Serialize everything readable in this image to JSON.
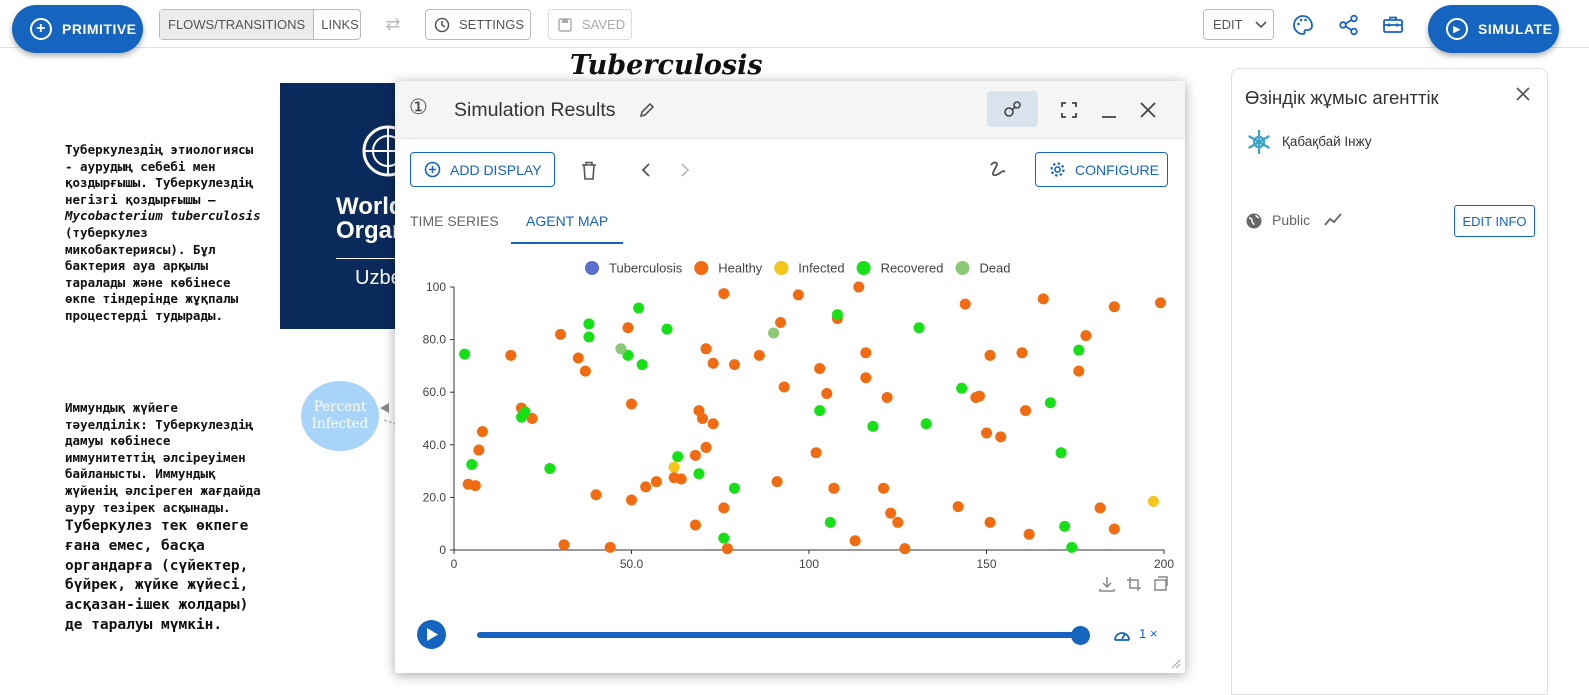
{
  "toolbar": {
    "primitive_label": "PRIMITIVE",
    "flows_label": "FLOWS/TRANSITIONS",
    "links_label": "LINKS",
    "settings_label": "SETTINGS",
    "saved_label": "SAVED",
    "edit_label": "EDIT",
    "simulate_label": "SIMULATE"
  },
  "canvas": {
    "title": "Tuberculosis",
    "who_line1": "World",
    "who_line2": "Organ",
    "who_line3": "Uzbe",
    "percent_node": "Percent\nInfected",
    "text_block1_parts": {
      "p1": "Туберкулездің этиологиясы - аурудың себебі мен қоздырғышы. Туберкулездің негізгі қоздырғышы — ",
      "p2": "Mycobacterium tuberculosis",
      "p3": " (туберкулез микобактериясы). Бұл бактерия ауа арқылы таралады және көбінесе өкпе тіндерінде жұқпалы процестерді тудырады."
    },
    "text_block2": "Иммундық жүйеге тәуелділік: Туберкулездің дамуы көбінесе иммунитеттің әлсіреуімен байланысты. Иммундық жүйенің әлсіреген жағдайда ауру тезірек асқынады.",
    "text_block3": "Туберкулез тек өкпеге ғана емес, басқа органдарға (сүйектер, бүйрек, жүйке жүйесі, асқазан-ішек жолдары) де таралуы мүмкін."
  },
  "results": {
    "index_symbol": "①",
    "title": "Simulation Results",
    "add_display": "ADD DISPLAY",
    "configure": "CONFIGURE",
    "tabs": [
      "TIME SERIES",
      "AGENT MAP"
    ],
    "active_tab": "AGENT MAP",
    "speed": "1 ×",
    "progress": 1.0
  },
  "panel": {
    "title": "Өзіндік жұмыс агенттік",
    "author": "Қабақбай Інжу",
    "visibility": "Public",
    "edit_info": "EDIT INFO"
  },
  "colors": {
    "accent": "#1565c0",
    "Tuberculosis": "#5b6fcf",
    "Healthy": "#f26b11",
    "Infected": "#f5c518",
    "Recovered": "#16e016",
    "Dead": "#8bc975"
  },
  "icons": [
    "plus-circle-icon",
    "swap-arrows-icon",
    "clock-icon",
    "save-icon",
    "chevron-down-icon",
    "palette-icon",
    "share-icon",
    "toolbox-icon",
    "play-circle-icon",
    "pencil-icon",
    "network-icon",
    "fullscreen-icon",
    "minimize-icon",
    "close-icon",
    "trash-icon",
    "chevron-left-icon",
    "chevron-right-icon",
    "scribble-icon",
    "gear-icon",
    "download-icon",
    "crop-icon",
    "play-icon",
    "speedometer-icon",
    "globe-icon",
    "trend-icon",
    "snowflake-avatar-icon"
  ],
  "chart_data": {
    "type": "scatter",
    "xlim": [
      0,
      200
    ],
    "ylim": [
      0,
      100
    ],
    "xticks": [
      "0",
      "50.0",
      "100",
      "150",
      "200"
    ],
    "yticks": [
      "0",
      "20.0",
      "40.0",
      "60.0",
      "80.0",
      "100"
    ],
    "legend_position": "top",
    "series": [
      {
        "name": "Tuberculosis",
        "points": []
      },
      {
        "name": "Healthy",
        "points": [
          [
            4,
            25
          ],
          [
            6,
            24.5
          ],
          [
            7,
            38
          ],
          [
            8,
            45
          ],
          [
            16,
            74
          ],
          [
            19,
            54
          ],
          [
            22,
            50
          ],
          [
            30,
            82
          ],
          [
            31,
            2
          ],
          [
            35,
            73
          ],
          [
            37,
            68
          ],
          [
            40,
            21
          ],
          [
            44,
            1
          ],
          [
            49,
            84.5
          ],
          [
            50,
            55.5
          ],
          [
            50,
            19
          ],
          [
            54,
            24
          ],
          [
            57,
            26
          ],
          [
            62,
            27.5
          ],
          [
            64,
            27
          ],
          [
            68,
            9.5
          ],
          [
            68,
            36
          ],
          [
            69,
            53
          ],
          [
            70,
            50
          ],
          [
            71,
            39
          ],
          [
            71,
            76.5
          ],
          [
            73,
            48
          ],
          [
            73,
            71
          ],
          [
            76,
            16
          ],
          [
            76,
            97.5
          ],
          [
            77,
            0.5
          ],
          [
            79,
            70.5
          ],
          [
            86,
            74
          ],
          [
            91,
            26
          ],
          [
            92,
            86.5
          ],
          [
            93,
            62
          ],
          [
            97,
            97
          ],
          [
            102,
            37
          ],
          [
            103,
            69
          ],
          [
            105,
            59.5
          ],
          [
            107,
            23.5
          ],
          [
            108,
            88
          ],
          [
            113,
            3.5
          ],
          [
            114,
            100
          ],
          [
            116,
            75
          ],
          [
            116,
            65.5
          ],
          [
            121,
            23.5
          ],
          [
            122,
            58
          ],
          [
            123,
            14
          ],
          [
            125,
            10.5
          ],
          [
            127,
            0.5
          ],
          [
            142,
            16.5
          ],
          [
            144,
            93.5
          ],
          [
            147,
            58
          ],
          [
            148,
            58.5
          ],
          [
            150,
            44.5
          ],
          [
            151,
            74
          ],
          [
            151,
            10.5
          ],
          [
            154,
            43
          ],
          [
            160,
            75
          ],
          [
            161,
            53
          ],
          [
            162,
            6
          ],
          [
            166,
            95.5
          ],
          [
            176,
            68
          ],
          [
            178,
            81.5
          ],
          [
            182,
            16
          ],
          [
            186,
            8
          ],
          [
            186,
            92.5
          ],
          [
            199,
            94
          ]
        ]
      },
      {
        "name": "Infected",
        "points": [
          [
            62,
            31.5
          ],
          [
            197,
            18.5
          ]
        ]
      },
      {
        "name": "Recovered",
        "points": [
          [
            3,
            74.5
          ],
          [
            5,
            32.5
          ],
          [
            19,
            50.5
          ],
          [
            20,
            52.5
          ],
          [
            27,
            31
          ],
          [
            38,
            86
          ],
          [
            38,
            81
          ],
          [
            49,
            74
          ],
          [
            52,
            92
          ],
          [
            53,
            70.5
          ],
          [
            60,
            84
          ],
          [
            63,
            35.5
          ],
          [
            69,
            29
          ],
          [
            76,
            4.5
          ],
          [
            79,
            23.5
          ],
          [
            103,
            53
          ],
          [
            106,
            10.5
          ],
          [
            108,
            89.5
          ],
          [
            118,
            47
          ],
          [
            131,
            84.5
          ],
          [
            133,
            48
          ],
          [
            143,
            61.5
          ],
          [
            168,
            56
          ],
          [
            171,
            37
          ],
          [
            172,
            9
          ],
          [
            174,
            1
          ],
          [
            176,
            76
          ]
        ]
      },
      {
        "name": "Dead",
        "points": [
          [
            47,
            76.5
          ],
          [
            90,
            82.5
          ]
        ]
      }
    ]
  }
}
